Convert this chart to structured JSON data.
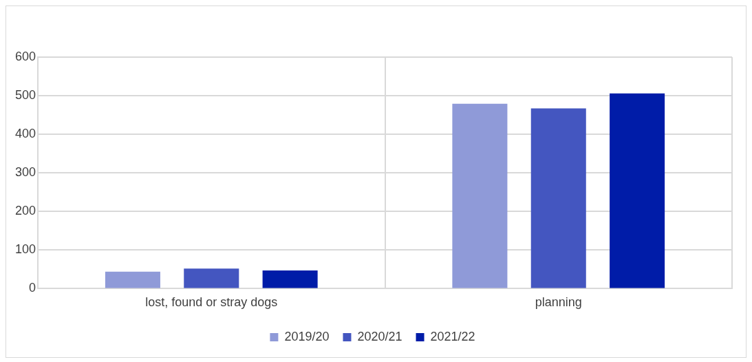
{
  "chart_data": {
    "type": "bar",
    "categories": [
      "lost, found or stray dogs",
      "planning"
    ],
    "series": [
      {
        "name": "2019/20",
        "color": "#8f9ad8",
        "values": [
          44,
          479
        ]
      },
      {
        "name": "2020/21",
        "color": "#4456c0",
        "values": [
          52,
          467
        ]
      },
      {
        "name": "2021/22",
        "color": "#001ca8",
        "values": [
          47,
          506
        ]
      }
    ],
    "ylim": [
      0,
      600
    ],
    "yticks": [
      0,
      100,
      200,
      300,
      400,
      500,
      600
    ],
    "grid": true,
    "legend": "bottom"
  }
}
